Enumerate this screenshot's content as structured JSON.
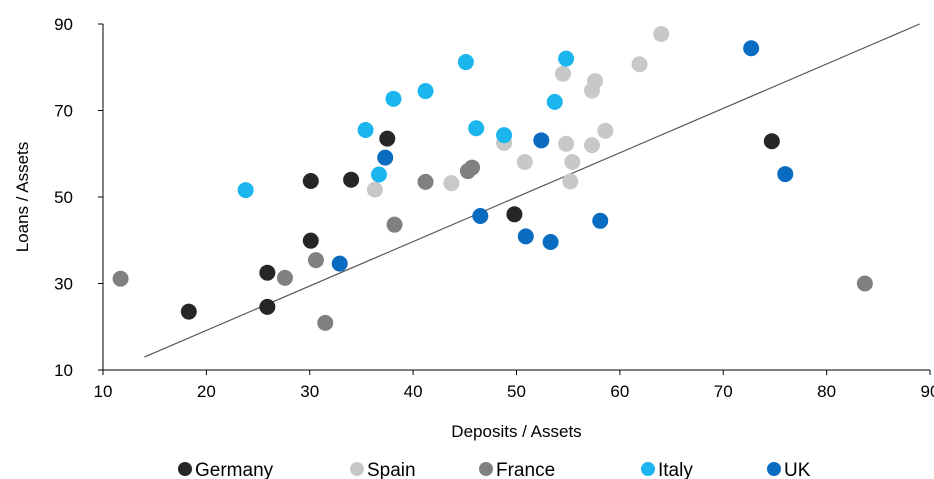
{
  "chart_data": {
    "type": "scatter",
    "title": "",
    "xlabel": "Deposits / Assets",
    "ylabel": "Loans / Assets",
    "xlim": [
      10,
      90
    ],
    "ylim": [
      10,
      90
    ],
    "x_ticks": [
      "10",
      "20",
      "30",
      "40",
      "50",
      "60",
      "70",
      "80",
      "90"
    ],
    "y_ticks": [
      "10",
      "30",
      "50",
      "70",
      "90"
    ],
    "grid": false,
    "legend_position": "bottom",
    "trendline": {
      "x": [
        14,
        89
      ],
      "y": [
        13,
        90
      ],
      "color": "#595959"
    },
    "series": [
      {
        "name": "Germany",
        "color": "#262626",
        "points": [
          {
            "x": 18.3,
            "y": 23.5
          },
          {
            "x": 25.9,
            "y": 32.5
          },
          {
            "x": 25.9,
            "y": 24.6
          },
          {
            "x": 30.1,
            "y": 53.7
          },
          {
            "x": 30.1,
            "y": 39.9
          },
          {
            "x": 34.0,
            "y": 54.0
          },
          {
            "x": 37.5,
            "y": 63.5
          },
          {
            "x": 49.8,
            "y": 46.0
          },
          {
            "x": 74.7,
            "y": 62.9
          }
        ]
      },
      {
        "name": "Spain",
        "color": "#c8c8c8",
        "points": [
          {
            "x": 36.3,
            "y": 51.7
          },
          {
            "x": 43.7,
            "y": 53.2
          },
          {
            "x": 48.8,
            "y": 62.5
          },
          {
            "x": 50.8,
            "y": 58.1
          },
          {
            "x": 54.5,
            "y": 78.5
          },
          {
            "x": 54.8,
            "y": 62.3
          },
          {
            "x": 55.2,
            "y": 53.6
          },
          {
            "x": 55.4,
            "y": 58.1
          },
          {
            "x": 57.3,
            "y": 74.6
          },
          {
            "x": 57.3,
            "y": 62.0
          },
          {
            "x": 57.6,
            "y": 76.8
          },
          {
            "x": 58.6,
            "y": 65.3
          },
          {
            "x": 61.9,
            "y": 80.7
          },
          {
            "x": 64.0,
            "y": 87.7
          }
        ]
      },
      {
        "name": "France",
        "color": "#808080",
        "points": [
          {
            "x": 11.7,
            "y": 31.1
          },
          {
            "x": 27.6,
            "y": 31.3
          },
          {
            "x": 30.6,
            "y": 35.4
          },
          {
            "x": 31.5,
            "y": 20.9
          },
          {
            "x": 38.2,
            "y": 43.6
          },
          {
            "x": 41.2,
            "y": 53.5
          },
          {
            "x": 45.3,
            "y": 56.0
          },
          {
            "x": 45.7,
            "y": 56.8
          },
          {
            "x": 83.7,
            "y": 30.0
          }
        ]
      },
      {
        "name": "Italy",
        "color": "#1ab6ed",
        "points": [
          {
            "x": 23.8,
            "y": 51.6
          },
          {
            "x": 35.4,
            "y": 65.5
          },
          {
            "x": 36.7,
            "y": 55.2
          },
          {
            "x": 38.1,
            "y": 72.7
          },
          {
            "x": 41.2,
            "y": 74.5
          },
          {
            "x": 45.1,
            "y": 81.2
          },
          {
            "x": 46.1,
            "y": 65.9
          },
          {
            "x": 48.8,
            "y": 64.3
          },
          {
            "x": 53.7,
            "y": 72.0
          },
          {
            "x": 54.8,
            "y": 82.0
          }
        ]
      },
      {
        "name": "UK",
        "color": "#0a6cc0",
        "points": [
          {
            "x": 32.9,
            "y": 34.6
          },
          {
            "x": 37.3,
            "y": 59.1
          },
          {
            "x": 46.5,
            "y": 45.6
          },
          {
            "x": 50.9,
            "y": 40.9
          },
          {
            "x": 52.4,
            "y": 63.1
          },
          {
            "x": 53.3,
            "y": 39.6
          },
          {
            "x": 58.1,
            "y": 44.5
          },
          {
            "x": 72.7,
            "y": 84.4
          },
          {
            "x": 76.0,
            "y": 55.3
          }
        ]
      }
    ]
  }
}
